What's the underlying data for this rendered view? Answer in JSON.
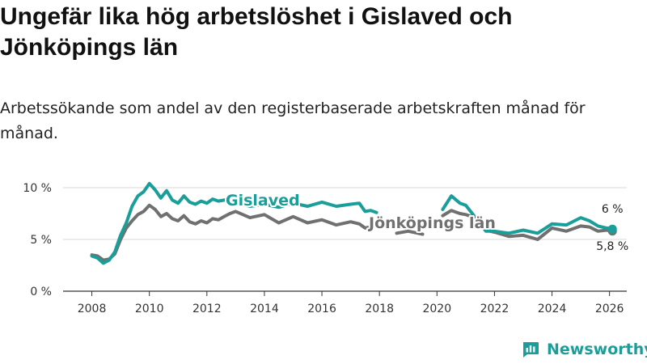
{
  "header": {
    "title": "Ungefär lika hög arbetslöshet i Gislaved och Jönköpings län",
    "subtitle": "Arbetssökande som andel av den registerbaserade arbetskraften månad för månad."
  },
  "brand": {
    "name": "Newsworthy",
    "icon": "newsworthy-logo-icon",
    "color": "#1a9e9a"
  },
  "chart_data": {
    "type": "line",
    "title": "Ungefär lika hög arbetslöshet i Gislaved och Jönköpings län",
    "subtitle": "Arbetssökande som andel av den registerbaserade arbetskraften månad för månad.",
    "xlabel": "",
    "ylabel": "",
    "xlim": [
      2007,
      2026.6
    ],
    "ylim": [
      0,
      10
    ],
    "x_ticks": [
      2008,
      2010,
      2012,
      2014,
      2016,
      2018,
      2020,
      2022,
      2024,
      2026
    ],
    "y_ticks": [
      0,
      5,
      10
    ],
    "y_tick_labels": [
      "0 %",
      "5 %",
      "10 %"
    ],
    "grid": true,
    "series": [
      {
        "name": "Gislaved",
        "color": "#1a9e9a",
        "end_label": "6 %",
        "label_placement": "above-line-near-2013",
        "points": [
          [
            2008,
            3.4
          ],
          [
            2008.2,
            3.2
          ],
          [
            2008.4,
            2.7
          ],
          [
            2008.6,
            3.0
          ],
          [
            2008.8,
            3.8
          ],
          [
            2009.0,
            5.4
          ],
          [
            2009.2,
            6.6
          ],
          [
            2009.4,
            8.2
          ],
          [
            2009.6,
            9.2
          ],
          [
            2009.8,
            9.6
          ],
          [
            2010.0,
            10.4
          ],
          [
            2010.2,
            9.8
          ],
          [
            2010.4,
            9.0
          ],
          [
            2010.6,
            9.7
          ],
          [
            2010.8,
            8.8
          ],
          [
            2011.0,
            8.5
          ],
          [
            2011.2,
            9.2
          ],
          [
            2011.4,
            8.6
          ],
          [
            2011.6,
            8.4
          ],
          [
            2011.8,
            8.7
          ],
          [
            2012.0,
            8.5
          ],
          [
            2012.2,
            8.9
          ],
          [
            2012.4,
            8.7
          ],
          [
            2012.6,
            8.8
          ],
          [
            2012.8,
            8.9
          ],
          [
            2013.0,
            8.5
          ],
          [
            2013.5,
            8.2
          ],
          [
            2014.0,
            8.4
          ],
          [
            2014.5,
            8.1
          ],
          [
            2015.0,
            8.5
          ],
          [
            2015.5,
            8.2
          ],
          [
            2016.0,
            8.6
          ],
          [
            2016.5,
            8.2
          ],
          [
            2017.0,
            8.4
          ],
          [
            2017.3,
            8.5
          ],
          [
            2017.5,
            7.7
          ],
          [
            2017.7,
            7.8
          ],
          [
            2017.9,
            7.6
          ],
          [
            2020.2,
            7.9
          ],
          [
            2020.5,
            9.2
          ],
          [
            2020.8,
            8.5
          ],
          [
            2021.0,
            8.3
          ],
          [
            2021.2,
            7.6
          ],
          [
            2021.7,
            5.8
          ],
          [
            2022.0,
            5.8
          ],
          [
            2022.5,
            5.6
          ],
          [
            2023.0,
            5.9
          ],
          [
            2023.5,
            5.6
          ],
          [
            2024.0,
            6.5
          ],
          [
            2024.5,
            6.4
          ],
          [
            2025.0,
            7.1
          ],
          [
            2025.3,
            6.8
          ],
          [
            2025.6,
            6.3
          ],
          [
            2025.9,
            6.1
          ],
          [
            2026.1,
            6.0
          ]
        ]
      },
      {
        "name": "Jönköpings län",
        "color": "#707070",
        "end_label": "5,8 %",
        "label_placement": "beside-line-near-2019",
        "points": [
          [
            2008,
            3.5
          ],
          [
            2008.2,
            3.4
          ],
          [
            2008.4,
            3.0
          ],
          [
            2008.6,
            3.1
          ],
          [
            2008.8,
            3.6
          ],
          [
            2009.0,
            5.0
          ],
          [
            2009.2,
            6.1
          ],
          [
            2009.4,
            6.8
          ],
          [
            2009.6,
            7.4
          ],
          [
            2009.8,
            7.7
          ],
          [
            2010.0,
            8.3
          ],
          [
            2010.2,
            7.9
          ],
          [
            2010.4,
            7.2
          ],
          [
            2010.6,
            7.5
          ],
          [
            2010.8,
            7.0
          ],
          [
            2011.0,
            6.8
          ],
          [
            2011.2,
            7.3
          ],
          [
            2011.4,
            6.7
          ],
          [
            2011.6,
            6.5
          ],
          [
            2011.8,
            6.8
          ],
          [
            2012.0,
            6.6
          ],
          [
            2012.2,
            7.0
          ],
          [
            2012.4,
            6.9
          ],
          [
            2012.6,
            7.2
          ],
          [
            2012.8,
            7.5
          ],
          [
            2013.0,
            7.7
          ],
          [
            2013.5,
            7.1
          ],
          [
            2014.0,
            7.4
          ],
          [
            2014.5,
            6.6
          ],
          [
            2015.0,
            7.2
          ],
          [
            2015.5,
            6.6
          ],
          [
            2016.0,
            6.9
          ],
          [
            2016.5,
            6.4
          ],
          [
            2017.0,
            6.7
          ],
          [
            2017.3,
            6.5
          ],
          [
            2017.5,
            6.1
          ],
          [
            2017.8,
            6.3
          ],
          [
            2018.6,
            5.6
          ],
          [
            2019.0,
            5.8
          ],
          [
            2019.5,
            5.5
          ],
          [
            2020.2,
            7.3
          ],
          [
            2020.5,
            7.8
          ],
          [
            2020.8,
            7.5
          ],
          [
            2021.0,
            7.4
          ],
          [
            2021.2,
            7.2
          ],
          [
            2021.7,
            5.9
          ],
          [
            2022.0,
            5.7
          ],
          [
            2022.5,
            5.3
          ],
          [
            2023.0,
            5.4
          ],
          [
            2023.5,
            5.0
          ],
          [
            2024.0,
            6.1
          ],
          [
            2024.5,
            5.8
          ],
          [
            2025.0,
            6.3
          ],
          [
            2025.3,
            6.2
          ],
          [
            2025.6,
            5.8
          ],
          [
            2025.9,
            5.9
          ],
          [
            2026.1,
            5.8
          ]
        ]
      }
    ]
  }
}
